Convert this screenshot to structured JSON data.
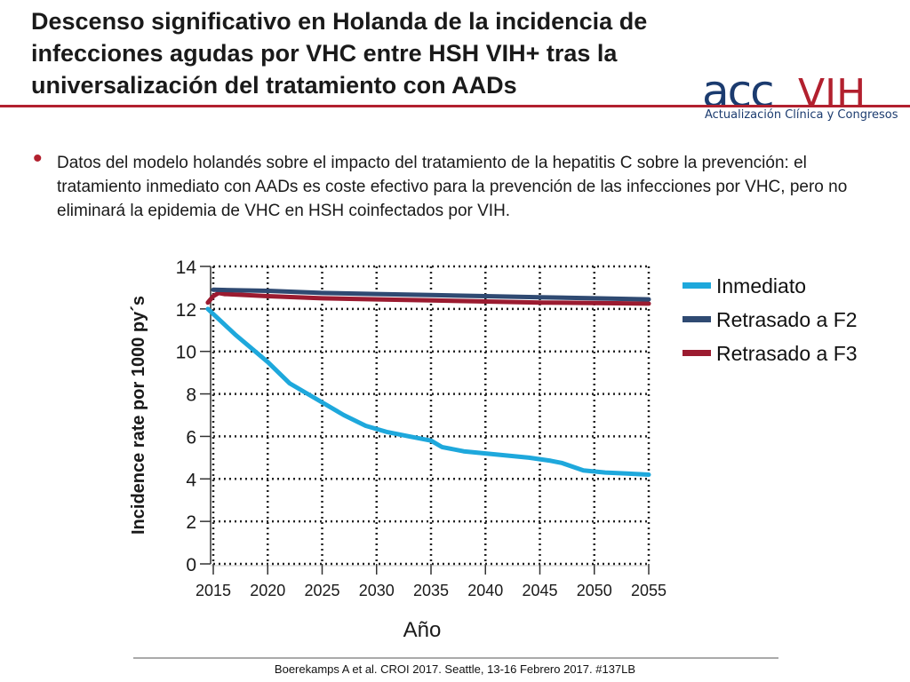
{
  "slide": {
    "title": "Descenso significativo en Holanda de la incidencia de infecciones agudas por VHC entre HSH VIH+ tras la universalización del tratamiento con AADs",
    "bullet": "Datos del modelo holandés sobre el impacto del tratamiento de la hepatitis C sobre la prevención: el tratamiento inmediato con AADs es coste efectivo para la prevención de las infecciones por VHC, pero no eliminará la epidemia de VHC en HSH coinfectados por VIH.",
    "footer": "Boerekamps A et al. CROI 2017. Seattle, 13-16 Febrero 2017. #137LB"
  },
  "logo": {
    "acc_text": "acc",
    "vih_text": "VIH",
    "subtitle": "Actualización Clínica y Congresos",
    "acc_color": "#1b3b6f",
    "vih_color": "#b2202e"
  },
  "colors": {
    "accent": "#b2202e"
  },
  "chart_data": {
    "type": "line",
    "title": "",
    "xlabel": "Año",
    "ylabel": "Incidence rate por 1000 py´s",
    "xlim": [
      2015,
      2055
    ],
    "ylim": [
      0,
      14
    ],
    "xticks": [
      2015,
      2020,
      2025,
      2030,
      2035,
      2040,
      2045,
      2050,
      2055
    ],
    "yticks": [
      0,
      2,
      4,
      6,
      8,
      10,
      12,
      14
    ],
    "grid": "dotted",
    "legend_position": "right",
    "series": [
      {
        "name": "Inmediato",
        "color": "#1ea8dc",
        "x": [
          2014.5,
          2017,
          2020,
          2022,
          2025,
          2027,
          2029,
          2031,
          2033,
          2035,
          2036,
          2038,
          2040,
          2042,
          2044,
          2046,
          2047,
          2049,
          2051,
          2053,
          2055
        ],
        "values": [
          12.0,
          10.8,
          9.5,
          8.5,
          7.6,
          7.0,
          6.5,
          6.2,
          6.0,
          5.8,
          5.5,
          5.3,
          5.2,
          5.1,
          5.0,
          4.85,
          4.75,
          4.4,
          4.3,
          4.25,
          4.2
        ]
      },
      {
        "name": "Retrasado a F2",
        "color": "#2f4a72",
        "x": [
          2015,
          2020,
          2025,
          2030,
          2035,
          2040,
          2045,
          2050,
          2055
        ],
        "values": [
          12.9,
          12.85,
          12.75,
          12.7,
          12.65,
          12.6,
          12.55,
          12.5,
          12.45
        ]
      },
      {
        "name": "Retrasado a F3",
        "color": "#9b1b30",
        "x": [
          2014.5,
          2015,
          2015.5,
          2016,
          2020,
          2025,
          2030,
          2035,
          2040,
          2045,
          2050,
          2055
        ],
        "values": [
          12.3,
          12.6,
          12.75,
          12.7,
          12.6,
          12.5,
          12.45,
          12.4,
          12.35,
          12.3,
          12.28,
          12.25
        ]
      }
    ]
  }
}
